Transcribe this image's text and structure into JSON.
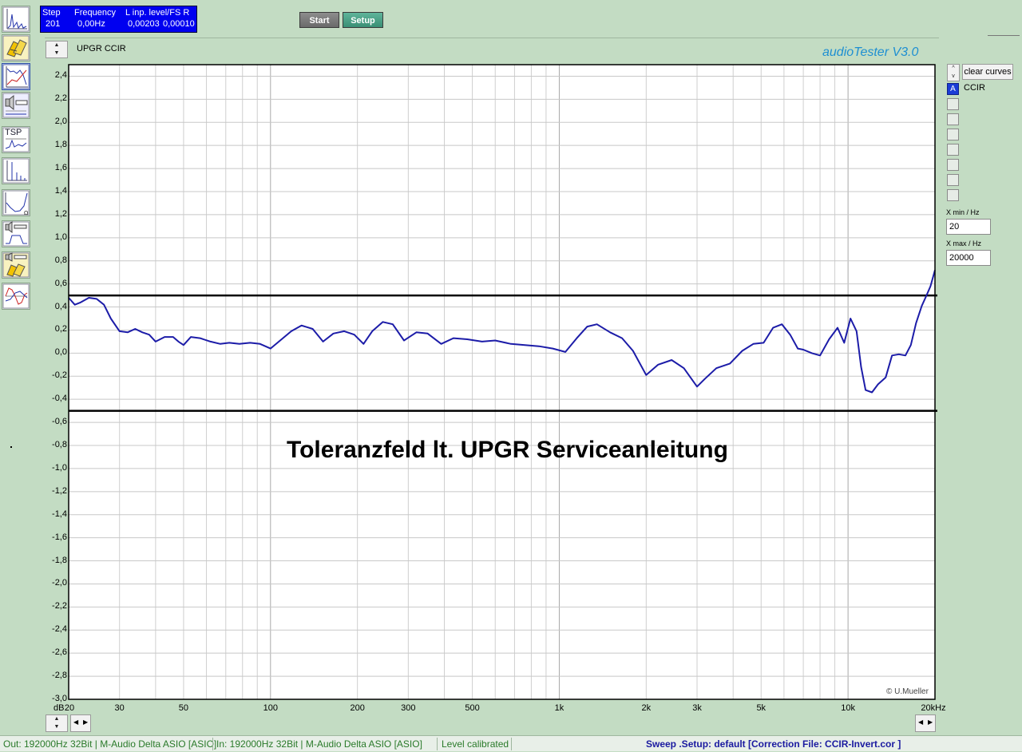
{
  "header": {
    "step_label": "Step",
    "step_value": "201",
    "freq_label": "Frequency",
    "freq_value": "0,00Hz",
    "level_label": "L  inp. level/FS  R",
    "level_left": "0,00203",
    "level_right": "0,00010",
    "start_button": "Start",
    "setup_button": "Setup"
  },
  "graph": {
    "title": "UPGR CCIR",
    "brand": "audioTester  V3.0",
    "annotation": "Toleranzfeld lt. UPGR Serviceanleitung",
    "copyright": "© U.Mueller",
    "y_unit": "dB",
    "x_unit_end": "20kHz"
  },
  "sidebar": {
    "tools": [
      {
        "icon": "spectrum-analyzer-icon"
      },
      {
        "icon": "calibration-icon"
      },
      {
        "icon": "frequency-response-icon"
      },
      {
        "icon": "speaker-test-icon"
      },
      {
        "icon": "tsp-icon",
        "label": "TSP"
      },
      {
        "icon": "thd-analyzer-icon"
      },
      {
        "icon": "impedance-curve-icon"
      },
      {
        "icon": "speaker-frequency-icon"
      },
      {
        "icon": "speaker-calibration-icon"
      },
      {
        "icon": "phase-response-icon"
      }
    ]
  },
  "right_panel": {
    "clear_curves": "clear curves",
    "curve_a_label": "A",
    "curve_a_name": "CCIR",
    "x_min_label": "X min / Hz",
    "x_min_value": "20",
    "x_max_label": "X max / Hz",
    "x_max_value": "20000"
  },
  "statusbar": {
    "out": "Out: 192000Hz 32Bit  | M-Audio Delta ASIO [ASIO]",
    "in": "In: 192000Hz 32Bit  | M-Audio Delta ASIO [ASIO]",
    "level": "Level calibrated",
    "sweep": "Sweep  .Setup:  default  [Correction File: CCIR-Invert.cor ]"
  },
  "colors": {
    "background": "#c3dcc3",
    "plot_background": "#ffffff",
    "grid": "#c8c8c8",
    "curve": "#1c1ca8",
    "tolerance_lines": "#000000",
    "status_box": "#0000f0",
    "statusbar_green_text": "#2a7a2a",
    "statusbar_blue_text": "#1a1aa0"
  },
  "chart_data": {
    "type": "line",
    "x_scale": "log",
    "xlim": [
      20,
      20000
    ],
    "ylim": [
      -3.0,
      2.5
    ],
    "y_ticks": [
      2.4,
      2.2,
      2.0,
      1.8,
      1.6,
      1.4,
      1.2,
      1.0,
      0.8,
      0.6,
      0.4,
      0.2,
      0.0,
      -0.2,
      -0.4,
      -0.6,
      -0.8,
      -1.0,
      -1.2,
      -1.4,
      -1.6,
      -1.8,
      -2.0,
      -2.2,
      -2.4,
      -2.6,
      -2.8,
      -3.0
    ],
    "y_tick_labels": [
      "2,4",
      "2,2",
      "2,0",
      "1,8",
      "1,6",
      "1,4",
      "1,2",
      "1,0",
      "0,8",
      "0,6",
      "0,4",
      "0,2",
      "0,0",
      "-0,2",
      "-0,4",
      "-0,6",
      "-0,8",
      "-1,0",
      "-1,2",
      "-1,4",
      "-1,6",
      "-1,8",
      "-2,0",
      "-2,2",
      "-2,4",
      "-2,6",
      "-2,8",
      "-3,0"
    ],
    "x_ticks": [
      20,
      30,
      50,
      100,
      200,
      300,
      500,
      1000,
      2000,
      3000,
      5000,
      10000,
      20000
    ],
    "x_tick_labels": [
      "20",
      "30",
      "50",
      "100",
      "200",
      "300",
      "500",
      "1k",
      "2k",
      "3k",
      "5k",
      "10k",
      "20kHz"
    ],
    "grid": true,
    "tolerance_limits": [
      0.5,
      -0.5
    ],
    "series": [
      {
        "name": "CCIR",
        "x": [
          20,
          21,
          22,
          23.5,
          25,
          26.5,
          28,
          30,
          32,
          34,
          36,
          38,
          40,
          43,
          46,
          48,
          50,
          53,
          57,
          62,
          67,
          72,
          78,
          85,
          92,
          100,
          108,
          118,
          128,
          140,
          152,
          165,
          180,
          195,
          210,
          225,
          245,
          265,
          290,
          320,
          350,
          390,
          430,
          480,
          540,
          600,
          680,
          760,
          850,
          950,
          1050,
          1150,
          1250,
          1350,
          1500,
          1650,
          1800,
          2000,
          2200,
          2450,
          2700,
          3000,
          3200,
          3500,
          3900,
          4300,
          4700,
          5100,
          5500,
          5900,
          6300,
          6700,
          7000,
          7500,
          8000,
          8600,
          9200,
          9700,
          10200,
          10700,
          11100,
          11500,
          12100,
          12700,
          13500,
          14200,
          15000,
          15800,
          16500,
          17200,
          18000,
          18700,
          19300,
          19700,
          20000
        ],
        "y": [
          0.48,
          0.42,
          0.44,
          0.48,
          0.47,
          0.42,
          0.3,
          0.19,
          0.18,
          0.21,
          0.18,
          0.16,
          0.1,
          0.14,
          0.14,
          0.1,
          0.07,
          0.14,
          0.13,
          0.1,
          0.08,
          0.09,
          0.08,
          0.09,
          0.08,
          0.04,
          0.11,
          0.19,
          0.24,
          0.21,
          0.1,
          0.17,
          0.19,
          0.16,
          0.08,
          0.19,
          0.27,
          0.25,
          0.11,
          0.18,
          0.17,
          0.08,
          0.13,
          0.12,
          0.1,
          0.11,
          0.08,
          0.07,
          0.06,
          0.04,
          0.01,
          0.13,
          0.23,
          0.25,
          0.18,
          0.13,
          0.02,
          -0.19,
          -0.1,
          -0.06,
          -0.13,
          -0.29,
          -0.22,
          -0.13,
          -0.09,
          0.02,
          0.08,
          0.09,
          0.22,
          0.25,
          0.16,
          0.04,
          0.03,
          0.0,
          -0.02,
          0.12,
          0.22,
          0.09,
          0.3,
          0.19,
          -0.12,
          -0.32,
          -0.34,
          -0.27,
          -0.21,
          -0.02,
          -0.01,
          -0.02,
          0.07,
          0.26,
          0.41,
          0.5,
          0.58,
          0.66,
          0.72
        ]
      }
    ]
  }
}
